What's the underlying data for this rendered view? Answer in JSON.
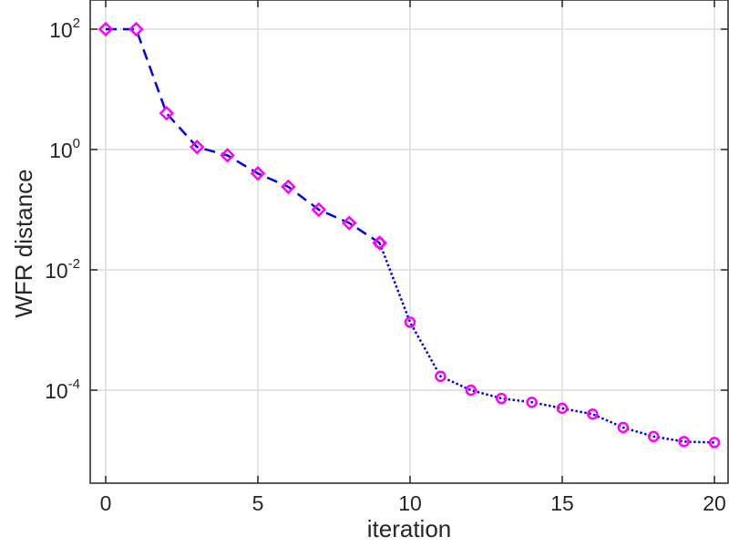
{
  "chart_data": {
    "type": "line",
    "title": "",
    "xlabel": "iteration",
    "ylabel": "WFR distance",
    "xlim": [
      -0.5,
      20.5
    ],
    "ylim_log10": [
      -5.5,
      2.3
    ],
    "yscale": "log",
    "grid": true,
    "x_ticks": [
      0,
      5,
      10,
      15,
      20
    ],
    "y_ticks": [
      {
        "base": "10",
        "exp": "2",
        "log10": 2
      },
      {
        "base": "10",
        "exp": "0",
        "log10": 0
      },
      {
        "base": "10",
        "exp": "-2",
        "log10": -2
      },
      {
        "base": "10",
        "exp": "-4",
        "log10": -4
      }
    ],
    "series": [
      {
        "line_style": "dashed",
        "marker": "diamond",
        "line_color": "#0000ee",
        "marker_color": "#ff00ff",
        "x": [
          0,
          1,
          2,
          3,
          4,
          5,
          6,
          7,
          8,
          9
        ],
        "y": [
          100,
          100,
          4,
          1.1,
          0.8,
          0.4,
          0.24,
          0.1,
          0.06,
          0.028
        ]
      },
      {
        "line_style": "dotted",
        "marker": "circle",
        "line_color": "#0000ee",
        "marker_color": "#ff00ff",
        "x": [
          9,
          10,
          11,
          12,
          13,
          14,
          15,
          16,
          17,
          18,
          19,
          20
        ],
        "y": [
          0.028,
          0.00135,
          0.00017,
          0.0001,
          7.3e-05,
          6.3e-05,
          5e-05,
          4e-05,
          2.4e-05,
          1.7e-05,
          1.4e-05,
          1.35e-05
        ]
      }
    ]
  }
}
